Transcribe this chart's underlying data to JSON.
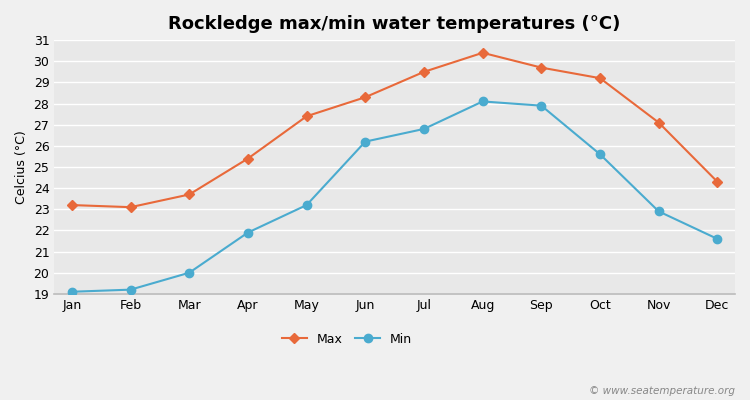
{
  "title": "Rockledge max/min water temperatures (°C)",
  "ylabel": "Celcius (°C)",
  "months": [
    "Jan",
    "Feb",
    "Mar",
    "Apr",
    "May",
    "Jun",
    "Jul",
    "Aug",
    "Sep",
    "Oct",
    "Nov",
    "Dec"
  ],
  "max_temps": [
    23.2,
    23.1,
    23.7,
    25.4,
    27.4,
    28.3,
    29.5,
    30.4,
    29.7,
    29.2,
    27.1,
    24.3
  ],
  "min_temps": [
    19.1,
    19.2,
    20.0,
    21.9,
    23.2,
    26.2,
    26.8,
    28.1,
    27.9,
    25.6,
    22.9,
    21.6
  ],
  "max_color": "#e8693a",
  "min_color": "#4aabcf",
  "max_marker": "D",
  "min_marker": "o",
  "fig_bg_color": "#f0f0f0",
  "plot_bg_color": "#e8e8e8",
  "grid_color": "#ffffff",
  "ylim": [
    19,
    31
  ],
  "yticks": [
    19,
    20,
    21,
    22,
    23,
    24,
    25,
    26,
    27,
    28,
    29,
    30,
    31
  ],
  "legend_labels": [
    "Max",
    "Min"
  ],
  "watermark": "© www.seatemperature.org",
  "title_fontsize": 13,
  "axis_fontsize": 9,
  "legend_fontsize": 9,
  "watermark_fontsize": 7.5
}
